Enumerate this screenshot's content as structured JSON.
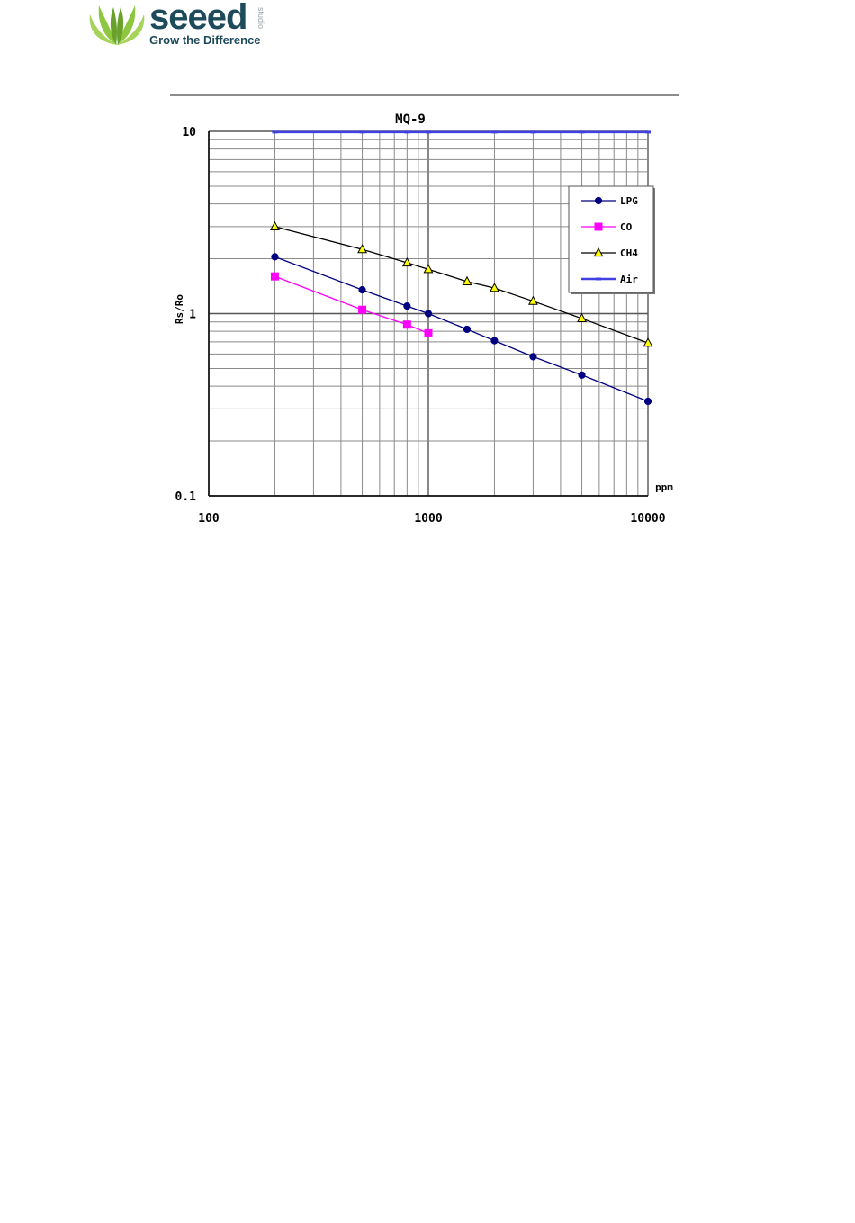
{
  "brand": {
    "name": "seeed",
    "studio": "studio",
    "tagline": "Grow the Difference",
    "colors": {
      "leaf_light": "#8dc63f",
      "leaf_dark": "#6aa12b",
      "text": "#1e4b5c"
    }
  },
  "chart_data": {
    "type": "line",
    "title": "MQ-9",
    "xlabel": "ppm",
    "ylabel": "Rs/Ro",
    "x_scale": "log",
    "y_scale": "log",
    "xlim": [
      100,
      10000
    ],
    "ylim": [
      0.1,
      10
    ],
    "x_ticks": [
      "100",
      "1000",
      "10000"
    ],
    "y_ticks": [
      "10",
      "1",
      "0.1"
    ],
    "grid": true,
    "legend_position": "top-right",
    "series": [
      {
        "name": "LPG",
        "color": "#000080",
        "marker": "diamond",
        "points": [
          [
            200,
            2.05
          ],
          [
            500,
            1.35
          ],
          [
            800,
            1.1
          ],
          [
            1000,
            1.0
          ],
          [
            1500,
            0.82
          ],
          [
            2000,
            0.71
          ],
          [
            3000,
            0.58
          ],
          [
            5000,
            0.46
          ],
          [
            10000,
            0.33
          ]
        ]
      },
      {
        "name": "CO",
        "color": "#ff00ff",
        "marker": "square",
        "points": [
          [
            200,
            1.6
          ],
          [
            500,
            1.05
          ],
          [
            800,
            0.87
          ],
          [
            1000,
            0.78
          ]
        ]
      },
      {
        "name": "CH4",
        "color": "#000000",
        "marker": "triangle",
        "points": [
          [
            200,
            3.0
          ],
          [
            500,
            2.25
          ],
          [
            800,
            1.9
          ],
          [
            1000,
            1.75
          ],
          [
            1500,
            1.5
          ],
          [
            2000,
            1.38
          ],
          [
            3000,
            1.17
          ],
          [
            5000,
            0.94
          ],
          [
            10000,
            0.69
          ]
        ]
      },
      {
        "name": "Air",
        "color": "#4040e0",
        "marker": "dash",
        "points": [
          [
            200,
            9.9
          ],
          [
            500,
            9.9
          ],
          [
            800,
            9.9
          ],
          [
            1000,
            9.9
          ],
          [
            2000,
            9.9
          ],
          [
            3000,
            9.9
          ],
          [
            5000,
            9.9
          ],
          [
            10000,
            9.9
          ]
        ]
      }
    ]
  }
}
